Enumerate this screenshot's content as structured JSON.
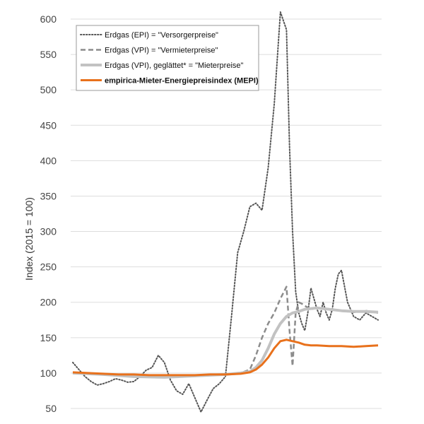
{
  "chart_data": {
    "type": "line",
    "title": "",
    "xlabel": "",
    "ylabel": "Index  (2015 = 100)",
    "ylim": [
      40,
      620
    ],
    "yticks": [
      50,
      100,
      150,
      200,
      250,
      300,
      350,
      400,
      450,
      500,
      550,
      600
    ],
    "grid": "horizontal",
    "legend_position": "top-left",
    "series": [
      {
        "name": "Erdgas (EPI) = \"Versorgerpreise\"",
        "color": "#555555",
        "style": "dotted",
        "width": 2,
        "x": [
          0,
          2,
          4,
          6,
          8,
          10,
          12,
          14,
          16,
          18,
          20,
          22,
          24,
          26,
          28,
          30,
          32,
          34,
          36,
          38,
          40,
          42,
          44,
          46,
          48,
          50,
          52,
          54,
          56,
          58,
          60,
          62,
          64,
          66,
          68,
          70,
          71,
          72,
          73,
          74,
          75,
          76,
          77,
          78,
          79,
          80,
          81,
          82,
          83,
          84,
          85,
          86,
          87,
          88,
          90,
          92,
          94,
          96,
          98,
          100
        ],
        "values": [
          115,
          105,
          95,
          88,
          83,
          85,
          88,
          92,
          90,
          87,
          88,
          95,
          104,
          108,
          125,
          115,
          90,
          75,
          70,
          85,
          65,
          45,
          62,
          78,
          85,
          95,
          180,
          270,
          300,
          335,
          340,
          330,
          390,
          480,
          610,
          585,
          420,
          300,
          215,
          185,
          170,
          160,
          185,
          220,
          205,
          190,
          180,
          200,
          185,
          175,
          190,
          220,
          240,
          245,
          200,
          180,
          175,
          185,
          180,
          175
        ]
      },
      {
        "name": "Erdgas (VPI) = \"Vermieterpreise\"",
        "color": "#8c8c8c",
        "style": "dashed",
        "width": 2.5,
        "x": [
          0,
          5,
          10,
          15,
          20,
          25,
          30,
          35,
          40,
          45,
          50,
          55,
          58,
          60,
          62,
          64,
          66,
          68,
          70,
          71,
          72,
          73,
          74,
          75,
          76,
          78,
          80,
          84,
          88,
          92,
          96,
          100
        ],
        "values": [
          100,
          99,
          98,
          97,
          97,
          96,
          96,
          96,
          96,
          97,
          98,
          100,
          105,
          125,
          150,
          170,
          185,
          205,
          222,
          160,
          110,
          185,
          200,
          198,
          195,
          190,
          192,
          190,
          188,
          186,
          188,
          185
        ]
      },
      {
        "name": "Erdgas (VPI), geglättet* = \"Mieterpreise\"",
        "color": "#c2c2c2",
        "style": "solid",
        "width": 4,
        "x": [
          0,
          10,
          20,
          30,
          40,
          50,
          55,
          58,
          60,
          62,
          64,
          66,
          68,
          70,
          72,
          74,
          76,
          80,
          84,
          88,
          92,
          96,
          100
        ],
        "values": [
          100,
          98,
          95,
          94,
          96,
          98,
          100,
          102,
          108,
          118,
          135,
          155,
          170,
          180,
          185,
          187,
          190,
          192,
          190,
          188,
          187,
          187,
          186
        ]
      },
      {
        "name": "empirica-Mieter-Energiepreisindex (MEPI)",
        "color": "#e8711c",
        "style": "solid",
        "width": 3,
        "x": [
          0,
          5,
          10,
          15,
          20,
          25,
          30,
          35,
          40,
          45,
          50,
          55,
          58,
          60,
          62,
          64,
          66,
          68,
          70,
          72,
          74,
          76,
          78,
          80,
          84,
          88,
          92,
          96,
          100
        ],
        "values": [
          101,
          100,
          99,
          98,
          98,
          97,
          97,
          97,
          97,
          98,
          98,
          99,
          101,
          105,
          112,
          122,
          135,
          145,
          147,
          145,
          143,
          140,
          139,
          139,
          138,
          138,
          137,
          138,
          139
        ]
      }
    ]
  }
}
